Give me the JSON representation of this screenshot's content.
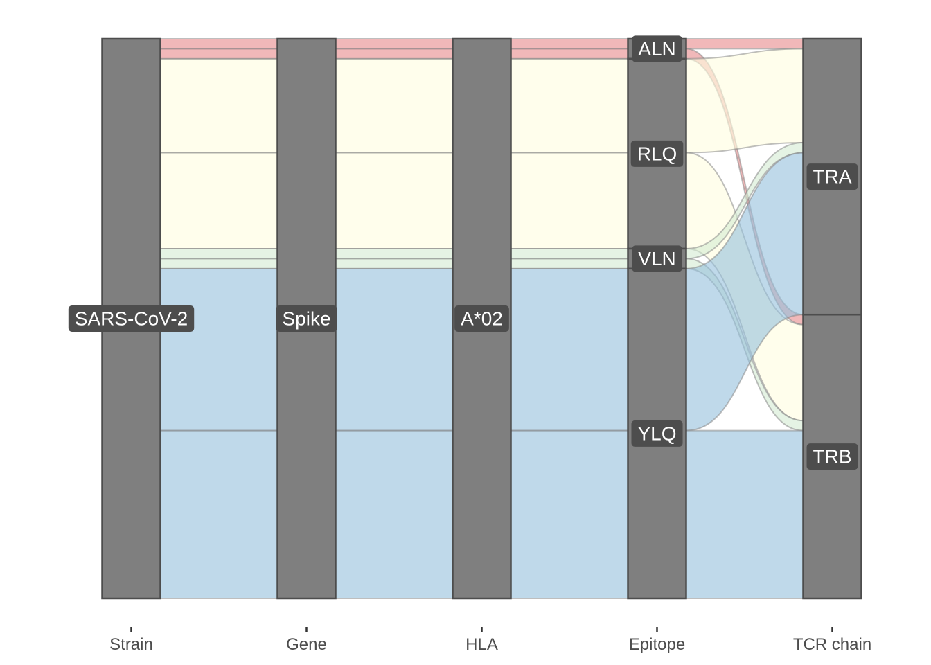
{
  "chart_data": {
    "type": "alluvial",
    "axes": [
      "Strain",
      "Gene",
      "HLA",
      "Epitope",
      "TCR chain"
    ],
    "total": 280,
    "flows": [
      {
        "Strain": "SARS-CoV-2",
        "Gene": "Spike",
        "HLA": "A*02",
        "Epitope": "ALN",
        "TCR chain": "TRA",
        "count": 5,
        "color": "#e8888a"
      },
      {
        "Strain": "SARS-CoV-2",
        "Gene": "Spike",
        "HLA": "A*02",
        "Epitope": "ALN",
        "TCR chain": "TRB",
        "count": 5,
        "color": "#e8888a"
      },
      {
        "Strain": "SARS-CoV-2",
        "Gene": "Spike",
        "HLA": "A*02",
        "Epitope": "RLQ",
        "TCR chain": "TRA",
        "count": 47,
        "color": "#fffde0"
      },
      {
        "Strain": "SARS-CoV-2",
        "Gene": "Spike",
        "HLA": "A*02",
        "Epitope": "RLQ",
        "TCR chain": "TRB",
        "count": 48,
        "color": "#fffde0"
      },
      {
        "Strain": "SARS-CoV-2",
        "Gene": "Spike",
        "HLA": "A*02",
        "Epitope": "VLN",
        "TCR chain": "TRA",
        "count": 5,
        "color": "#d3ebd2"
      },
      {
        "Strain": "SARS-CoV-2",
        "Gene": "Spike",
        "HLA": "A*02",
        "Epitope": "VLN",
        "TCR chain": "TRB",
        "count": 5,
        "color": "#d3ebd2"
      },
      {
        "Strain": "SARS-CoV-2",
        "Gene": "Spike",
        "HLA": "A*02",
        "Epitope": "YLQ",
        "TCR chain": "TRA",
        "count": 81,
        "color": "#95c0dc"
      },
      {
        "Strain": "SARS-CoV-2",
        "Gene": "Spike",
        "HLA": "A*02",
        "Epitope": "YLQ",
        "TCR chain": "TRB",
        "count": 84,
        "color": "#95c0dc"
      }
    ],
    "strata": {
      "Strain": [
        {
          "label": "SARS-CoV-2",
          "count": 280
        }
      ],
      "Gene": [
        {
          "label": "Spike",
          "count": 280
        }
      ],
      "HLA": [
        {
          "label": "A*02",
          "count": 280
        }
      ],
      "Epitope": [
        {
          "label": "ALN",
          "count": 10
        },
        {
          "label": "RLQ",
          "count": 95
        },
        {
          "label": "VLN",
          "count": 10
        },
        {
          "label": "YLQ",
          "count": 165
        }
      ],
      "TCR chain": [
        {
          "label": "TRA",
          "count": 138
        },
        {
          "label": "TRB",
          "count": 142
        }
      ]
    },
    "lode_guidance": "forward",
    "xlabel": "",
    "ylabel": "",
    "legend": "none",
    "grid": false
  }
}
